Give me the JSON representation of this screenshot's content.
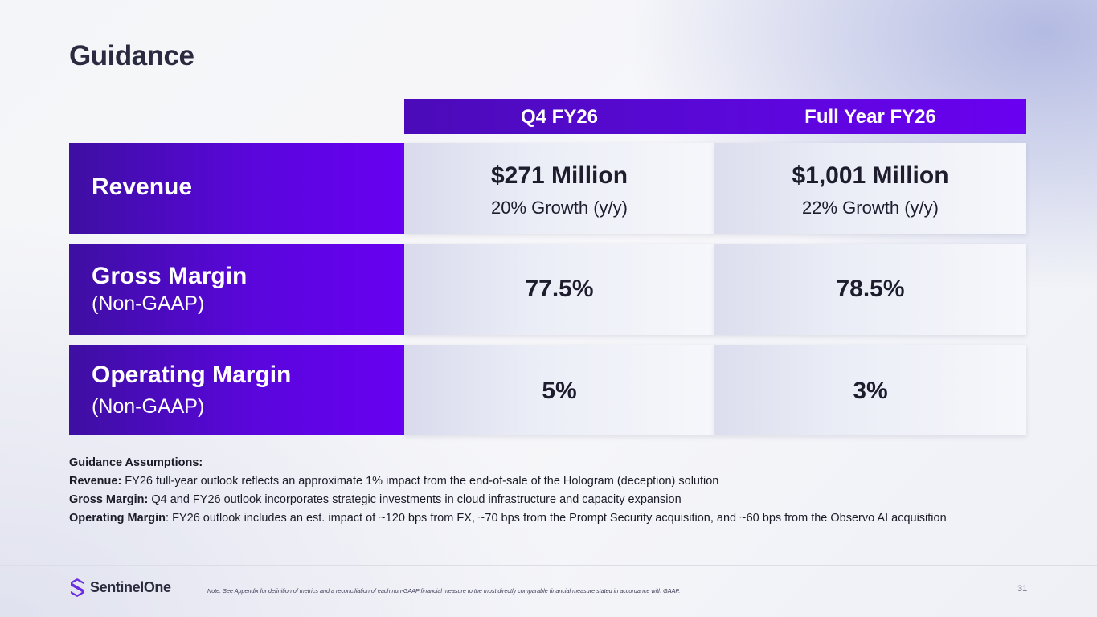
{
  "title": "Guidance",
  "columns": {
    "q4": "Q4 FY26",
    "fy": "Full Year FY26"
  },
  "rows": {
    "revenue": {
      "label": "Revenue",
      "q4_value": "$271 Million",
      "q4_growth": "20% Growth (y/y)",
      "fy_value": "$1,001 Million",
      "fy_growth": "22% Growth (y/y)"
    },
    "gross_margin": {
      "label": "Gross Margin",
      "sublabel": "(Non-GAAP)",
      "q4_value": "77.5%",
      "fy_value": "78.5%"
    },
    "operating_margin": {
      "label": "Operating Margin",
      "sublabel": "(Non-GAAP)",
      "q4_value": "5%",
      "fy_value": "3%"
    }
  },
  "assumptions": {
    "heading": "Guidance Assumptions:",
    "revenue_label": "Revenue:",
    "revenue_text": " FY26 full-year outlook reflects an approximate 1% impact from the end-of-sale of the Hologram (deception) solution",
    "gross_margin_label": "Gross Margin:",
    "gross_margin_text": " Q4 and FY26 outlook incorporates strategic investments in cloud infrastructure and capacity expansion",
    "operating_margin_label": "Operating Margin",
    "operating_margin_text": ": FY26 outlook includes an est. impact of ~120 bps from FX, ~70 bps from the Prompt Security acquisition, and ~60 bps from the Observo AI acquisition"
  },
  "footer": {
    "logo_text": "SentinelOne",
    "note": "Note: See Appendix for definition of metrics and a reconciliation of each non-GAAP financial measure to the most directly comparable financial measure stated in accordance with GAAP.",
    "page_number": "31"
  },
  "colors": {
    "brand_purple": "#6100ff",
    "dark_purple": "#3e0fa2"
  }
}
